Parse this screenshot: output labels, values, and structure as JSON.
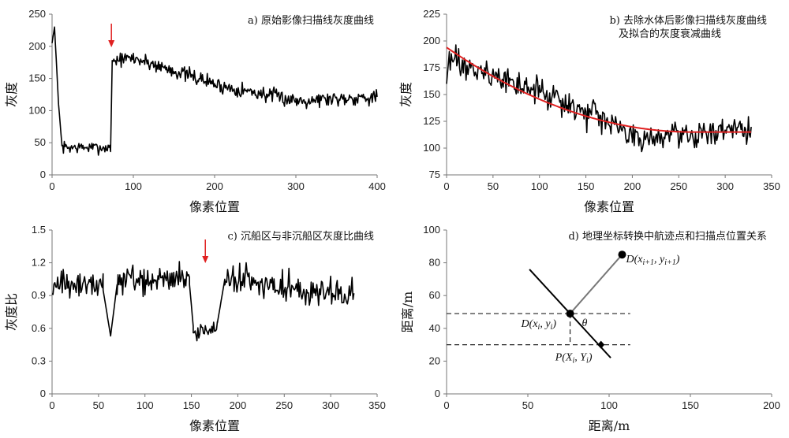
{
  "chart_data": [
    {
      "type": "line",
      "title": "a) 原始影像扫描线灰度曲线",
      "xlabel": "像素位置",
      "ylabel": "灰度",
      "xlim": [
        0,
        400
      ],
      "ylim": [
        0,
        250
      ],
      "xticks": [
        "0",
        "100",
        "200",
        "300",
        "400"
      ],
      "yticks": [
        "0",
        "50",
        "100",
        "150",
        "200",
        "250"
      ],
      "arrow_x": 73,
      "series": [
        {
          "color": "#000000",
          "segments": [
            {
              "x0": 0,
              "x1": 3,
              "y0": 205,
              "y1": 230
            },
            {
              "x0": 3,
              "x1": 8,
              "y0": 230,
              "y1": 110
            },
            {
              "x0": 8,
              "x1": 12,
              "y0": 110,
              "y1": 48
            },
            {
              "x0": 12,
              "x1": 72,
              "y0": 43,
              "y1": 42,
              "noise": 7
            },
            {
              "x0": 72,
              "x1": 74,
              "y0": 40,
              "y1": 175
            },
            {
              "x0": 74,
              "x1": 100,
              "y0": 178,
              "y1": 182,
              "noise": 8
            },
            {
              "x0": 100,
              "x1": 200,
              "y0": 182,
              "y1": 142,
              "noise": 9
            },
            {
              "x0": 200,
              "x1": 300,
              "y0": 140,
              "y1": 116,
              "noise": 9
            },
            {
              "x0": 300,
              "x1": 400,
              "y0": 116,
              "y1": 122,
              "noise": 9
            }
          ]
        }
      ]
    },
    {
      "type": "line",
      "title": "b) 去除水体后影像扫描线灰度曲线",
      "subtitle": "及拟合的灰度衰减曲线",
      "xlabel": "像素位置",
      "ylabel": "灰度",
      "xlim": [
        0,
        350
      ],
      "ylim": [
        75,
        225
      ],
      "xticks": [
        "0",
        "50",
        "100",
        "150",
        "200",
        "250",
        "300",
        "350"
      ],
      "yticks": [
        "75",
        "100",
        "125",
        "150",
        "175",
        "200",
        "225"
      ],
      "series": [
        {
          "color": "#000000",
          "segments": [
            {
              "x0": 0,
              "x1": 3,
              "y0": 160,
              "y1": 190
            },
            {
              "x0": 3,
              "x1": 100,
              "y0": 182,
              "y1": 152,
              "noise": 10
            },
            {
              "x0": 100,
              "x1": 200,
              "y0": 152,
              "y1": 112,
              "noise": 10
            },
            {
              "x0": 200,
              "x1": 328,
              "y0": 110,
              "y1": 117,
              "noise": 9
            }
          ]
        },
        {
          "color": "#e02020",
          "fit": {
            "x0": 0,
            "x1": 328,
            "y_start": 194,
            "y_min": 115,
            "x_min": 265
          }
        }
      ]
    },
    {
      "type": "line",
      "title": "c) 沉船区与非沉船区灰度比曲线",
      "xlabel": "像素位置",
      "ylabel": "灰度比",
      "xlim": [
        0,
        350
      ],
      "ylim": [
        0,
        1.5
      ],
      "xticks": [
        "0",
        "50",
        "100",
        "150",
        "200",
        "250",
        "300",
        "350"
      ],
      "yticks": [
        "0",
        "0.3",
        "0.6",
        "0.9",
        "1.2",
        "1.5"
      ],
      "arrow_x": 165,
      "series": [
        {
          "color": "#000000",
          "segments": [
            {
              "x0": 0,
              "x1": 55,
              "y0": 1.0,
              "y1": 1.0,
              "noise": 0.1
            },
            {
              "x0": 55,
              "x1": 63,
              "y0": 0.95,
              "y1": 0.53
            },
            {
              "x0": 63,
              "x1": 70,
              "y0": 0.53,
              "y1": 1.0
            },
            {
              "x0": 70,
              "x1": 148,
              "y0": 1.02,
              "y1": 1.08,
              "noise": 0.1
            },
            {
              "x0": 148,
              "x1": 152,
              "y0": 1.0,
              "y1": 0.62
            },
            {
              "x0": 152,
              "x1": 178,
              "y0": 0.55,
              "y1": 0.6,
              "noise": 0.06
            },
            {
              "x0": 178,
              "x1": 186,
              "y0": 0.65,
              "y1": 1.05
            },
            {
              "x0": 186,
              "x1": 325,
              "y0": 1.05,
              "y1": 0.9,
              "noise": 0.1
            }
          ]
        }
      ]
    },
    {
      "type": "scatter",
      "title": "d) 地理坐标转换中航迹点和扫描点位置关系",
      "xlabel": "距离/m",
      "ylabel": "距离/m",
      "xlim": [
        0,
        200
      ],
      "ylim": [
        0,
        100
      ],
      "xticks": [
        "0",
        "50",
        "100",
        "150",
        "200"
      ],
      "yticks": [
        "0",
        "20",
        "40",
        "60",
        "80",
        "100"
      ],
      "points": [
        {
          "name": "D_i",
          "x": 76,
          "y": 49
        },
        {
          "name": "D_i1",
          "x": 108,
          "y": 85
        },
        {
          "name": "P_i",
          "x": 95,
          "y": 30
        }
      ],
      "line_start": [
        51,
        76
      ],
      "line_end": [
        101,
        22
      ],
      "dashed_y": [
        49,
        30
      ],
      "dashed_x_range": [
        0,
        113
      ],
      "label_Di": "D(x",
      "label_Di_sub": "i",
      "label_Di_mid": ", y",
      "label_Di_sub2": "i",
      "label_Di_end": ")",
      "label_D1": "D(x",
      "label_D1_sub": "i+1",
      "label_D1_mid": ", y",
      "label_D1_sub2": "i+1",
      "label_D1_end": ")",
      "label_P": "P(X",
      "label_P_sub": "i",
      "label_P_mid": ", Y",
      "label_P_sub2": "i",
      "label_P_end": ")",
      "label_theta": "θ"
    }
  ]
}
